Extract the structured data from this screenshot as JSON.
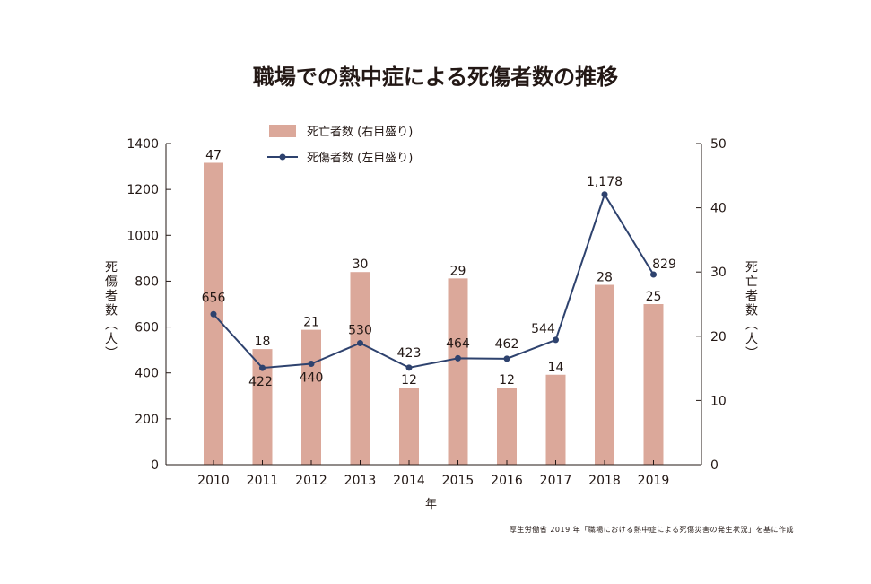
{
  "title": "職場での熱中症による死傷者数の推移",
  "source": "厚生労働省 2019 年「職場における熱中症による死傷災害の発生状況」を基に作成",
  "chart_data": {
    "type": "bar",
    "categories": [
      "2010",
      "2011",
      "2012",
      "2013",
      "2014",
      "2015",
      "2016",
      "2017",
      "2018",
      "2019"
    ],
    "series": [
      {
        "name": "死亡者数 (右目盛り)",
        "type": "bar",
        "axis": "right",
        "color": "#dba89a",
        "values": [
          47,
          18,
          21,
          30,
          12,
          29,
          12,
          14,
          28,
          25
        ],
        "labels": [
          "47",
          "18",
          "21",
          "30",
          "12",
          "29",
          "12",
          "14",
          "28",
          "25"
        ]
      },
      {
        "name": "死傷者数 (左目盛り)",
        "type": "line",
        "axis": "left",
        "color": "#2e426e",
        "values": [
          656,
          422,
          440,
          530,
          423,
          464,
          462,
          544,
          1178,
          829
        ],
        "labels": [
          "656",
          "422",
          "440",
          "530",
          "423",
          "464",
          "462",
          "544",
          "1,178",
          "829"
        ]
      }
    ],
    "xlabel": "年",
    "ylabel_left": "死傷者数（人）",
    "ylabel_right": "死亡者数（人）",
    "ylim_left": [
      0,
      1400
    ],
    "yticks_left": [
      "0",
      "200",
      "400",
      "600",
      "800",
      "1000",
      "1200",
      "1400"
    ],
    "ylim_right": [
      0,
      50
    ],
    "yticks_right": [
      "0",
      "10",
      "20",
      "30",
      "40",
      "50"
    ],
    "grid": false,
    "legend_position": "top-center"
  }
}
